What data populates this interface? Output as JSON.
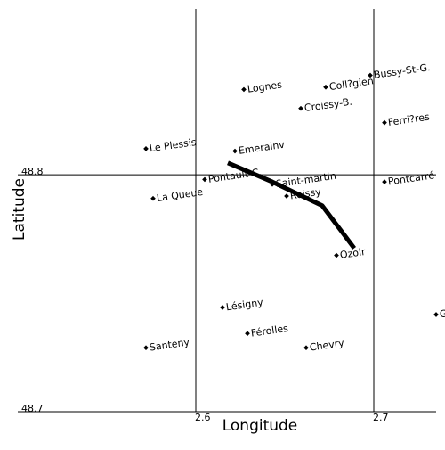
{
  "map": {
    "xlabel": "Longitude",
    "ylabel": "Latitude",
    "x_ticks": [
      {
        "value": 2.6,
        "label": "2.6"
      },
      {
        "value": 2.7,
        "label": "2.7"
      }
    ],
    "y_ticks": [
      {
        "value": 48.8,
        "label": "48.8"
      },
      {
        "value": 48.7,
        "label": "48.7"
      }
    ],
    "xlim": [
      2.5,
      2.74
    ],
    "ylim": [
      48.7,
      48.87
    ],
    "grid": true,
    "colors": {
      "line": "#000000",
      "marker": "#000000",
      "frame": "#000000"
    }
  },
  "chart_data": {
    "type": "scatter",
    "xlabel": "Longitude",
    "ylabel": "Latitude",
    "xlim": [
      2.5,
      2.74
    ],
    "ylim": [
      48.7,
      48.87
    ],
    "grid": true,
    "points": [
      {
        "name": "Lognes",
        "lon": 2.627,
        "lat": 48.836
      },
      {
        "name": "Coll?gien",
        "lon": 2.673,
        "lat": 48.837
      },
      {
        "name": "Bussy-St-G.",
        "lon": 2.698,
        "lat": 48.842
      },
      {
        "name": "Croissy-B.",
        "lon": 2.659,
        "lat": 48.828
      },
      {
        "name": "Ferri?res",
        "lon": 2.706,
        "lat": 48.822
      },
      {
        "name": "Le Plessis",
        "lon": 2.572,
        "lat": 48.811
      },
      {
        "name": "Emerainv",
        "lon": 2.622,
        "lat": 48.81
      },
      {
        "name": "Pontault-C.",
        "lon": 2.605,
        "lat": 48.798
      },
      {
        "name": "Saint-martin",
        "lon": 2.643,
        "lat": 48.796
      },
      {
        "name": "Roissy",
        "lon": 2.651,
        "lat": 48.791
      },
      {
        "name": "Pontcarré",
        "lon": 2.706,
        "lat": 48.797
      },
      {
        "name": "La Queue",
        "lon": 2.576,
        "lat": 48.79
      },
      {
        "name": "Ozoir",
        "lon": 2.679,
        "lat": 48.766
      },
      {
        "name": "Lésigny",
        "lon": 2.615,
        "lat": 48.744
      },
      {
        "name": "Gretz",
        "lon": 2.735,
        "lat": 48.741
      },
      {
        "name": "Férolles",
        "lon": 2.629,
        "lat": 48.733
      },
      {
        "name": "Santeny",
        "lon": 2.572,
        "lat": 48.727
      },
      {
        "name": "Chevry",
        "lon": 2.662,
        "lat": 48.727
      }
    ],
    "line": [
      {
        "lon": 2.618,
        "lat": 48.805
      },
      {
        "lon": 2.643,
        "lat": 48.797
      },
      {
        "lon": 2.671,
        "lat": 48.787
      },
      {
        "lon": 2.689,
        "lat": 48.769
      }
    ]
  }
}
